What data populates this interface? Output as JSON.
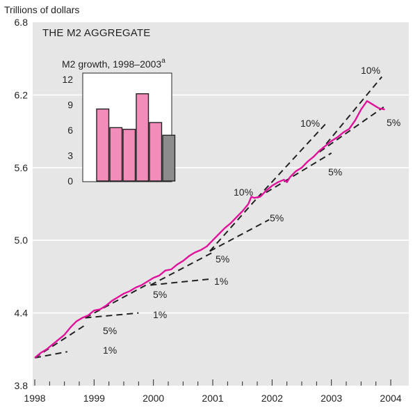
{
  "chart_data": {
    "type": "line",
    "unit_label": "Trillions of dollars",
    "title": "THE M2 AGGREGATE",
    "ylim": [
      3.8,
      6.8
    ],
    "yticks": [
      3.8,
      4.4,
      5.0,
      5.6,
      6.2,
      6.8
    ],
    "ytick_labels": [
      "3.8",
      "4.4",
      "5.0",
      "5.6",
      "6.2",
      "6.8"
    ],
    "xlim": [
      1998,
      2004
    ],
    "xticks": [
      1998,
      1999,
      2000,
      2001,
      2002,
      2003,
      2004
    ],
    "xtick_labels": [
      "1998",
      "1999",
      "2000",
      "2001",
      "2002",
      "2003",
      "2004"
    ],
    "grid": "horizontal",
    "colors": {
      "panel": "#e6e6e6",
      "series": "#e0119a",
      "trend": "#222222",
      "bar_pink": "#f28cb8",
      "bar_gray": "#8c8c8c"
    },
    "series": [
      {
        "x": [
          1998.0,
          1998.1,
          1998.2,
          1998.3,
          1998.4,
          1998.5,
          1998.6,
          1998.7,
          1998.8,
          1998.9,
          1999.0,
          1999.1,
          1999.2,
          1999.3,
          1999.4,
          1999.5,
          1999.6,
          1999.7,
          1999.8,
          1999.9,
          2000.0,
          2000.1,
          2000.2,
          2000.3,
          2000.4,
          2000.5,
          2000.6,
          2000.7,
          2000.8,
          2000.9,
          2001.0,
          2001.1,
          2001.2,
          2001.3,
          2001.4,
          2001.5,
          2001.6,
          2001.65,
          2001.7,
          2001.8,
          2001.9,
          2002.0,
          2002.1,
          2002.2,
          2002.25,
          2002.3,
          2002.4,
          2002.5,
          2002.6,
          2002.7,
          2002.8,
          2002.9,
          2003.0,
          2003.1,
          2003.2,
          2003.3,
          2003.4,
          2003.5,
          2003.6,
          2003.7,
          2003.8,
          2003.9
        ],
        "y": [
          4.03,
          4.07,
          4.1,
          4.14,
          4.18,
          4.22,
          4.28,
          4.33,
          4.36,
          4.38,
          4.42,
          4.43,
          4.46,
          4.5,
          4.53,
          4.56,
          4.58,
          4.61,
          4.63,
          4.66,
          4.69,
          4.71,
          4.75,
          4.76,
          4.8,
          4.83,
          4.87,
          4.9,
          4.92,
          4.95,
          5.0,
          5.05,
          5.1,
          5.14,
          5.19,
          5.24,
          5.3,
          5.36,
          5.35,
          5.36,
          5.41,
          5.45,
          5.48,
          5.5,
          5.48,
          5.52,
          5.57,
          5.6,
          5.65,
          5.69,
          5.74,
          5.78,
          5.82,
          5.85,
          5.89,
          5.92,
          5.99,
          6.08,
          6.15,
          6.12,
          6.09,
          6.08
        ]
      }
    ],
    "trend_lines": [
      {
        "x": [
          1998.0,
          1998.55
        ],
        "y": [
          4.03,
          4.08
        ],
        "label": "1%"
      },
      {
        "x": [
          1998.0,
          1998.85
        ],
        "y": [
          4.03,
          4.3
        ],
        "label": "5%"
      },
      {
        "x": [
          1998.85,
          1999.75
        ],
        "y": [
          4.36,
          4.4
        ],
        "label": "1%"
      },
      {
        "x": [
          1998.85,
          1999.95
        ],
        "y": [
          4.36,
          4.65
        ],
        "label": "5%"
      },
      {
        "x": [
          1999.95,
          2000.95
        ],
        "y": [
          4.63,
          4.68
        ],
        "label": "1%"
      },
      {
        "x": [
          1999.95,
          2001.0
        ],
        "y": [
          4.63,
          4.9
        ],
        "label": "5%"
      },
      {
        "x": [
          2000.95,
          2001.95
        ],
        "y": [
          4.91,
          5.17
        ],
        "label": "5%"
      },
      {
        "x": [
          2000.95,
          2001.75
        ],
        "y": [
          4.91,
          5.35
        ],
        "label": "10%"
      },
      {
        "x": [
          2001.75,
          2003.0
        ],
        "y": [
          5.35,
          5.72
        ],
        "label": "5%"
      },
      {
        "x": [
          2001.75,
          2002.9
        ],
        "y": [
          5.35,
          5.96
        ],
        "label": "10%"
      },
      {
        "x": [
          2002.8,
          2003.88
        ],
        "y": [
          5.73,
          6.1
        ],
        "label": "5%"
      },
      {
        "x": [
          2002.8,
          2003.85
        ],
        "y": [
          5.73,
          6.35
        ],
        "label": "10%"
      }
    ],
    "trend_label_text": [
      "1%",
      "5%",
      "1%",
      "5%",
      "1%",
      "5%",
      "5%",
      "10%",
      "10%",
      "5%",
      "10%",
      "5%"
    ],
    "inset": {
      "type": "bar",
      "title": "M2 growth, 1998–2003",
      "title_superscript": "a",
      "ylim": [
        0,
        12
      ],
      "yticks": [
        0,
        3,
        6,
        9,
        12
      ],
      "ytick_labels": [
        "0",
        "3",
        "6",
        "9",
        "12"
      ],
      "values": [
        8.5,
        6.3,
        6.1,
        10.3,
        6.9,
        5.4
      ],
      "bar_colors": [
        "pink",
        "pink",
        "pink",
        "pink",
        "pink",
        "gray"
      ]
    }
  }
}
